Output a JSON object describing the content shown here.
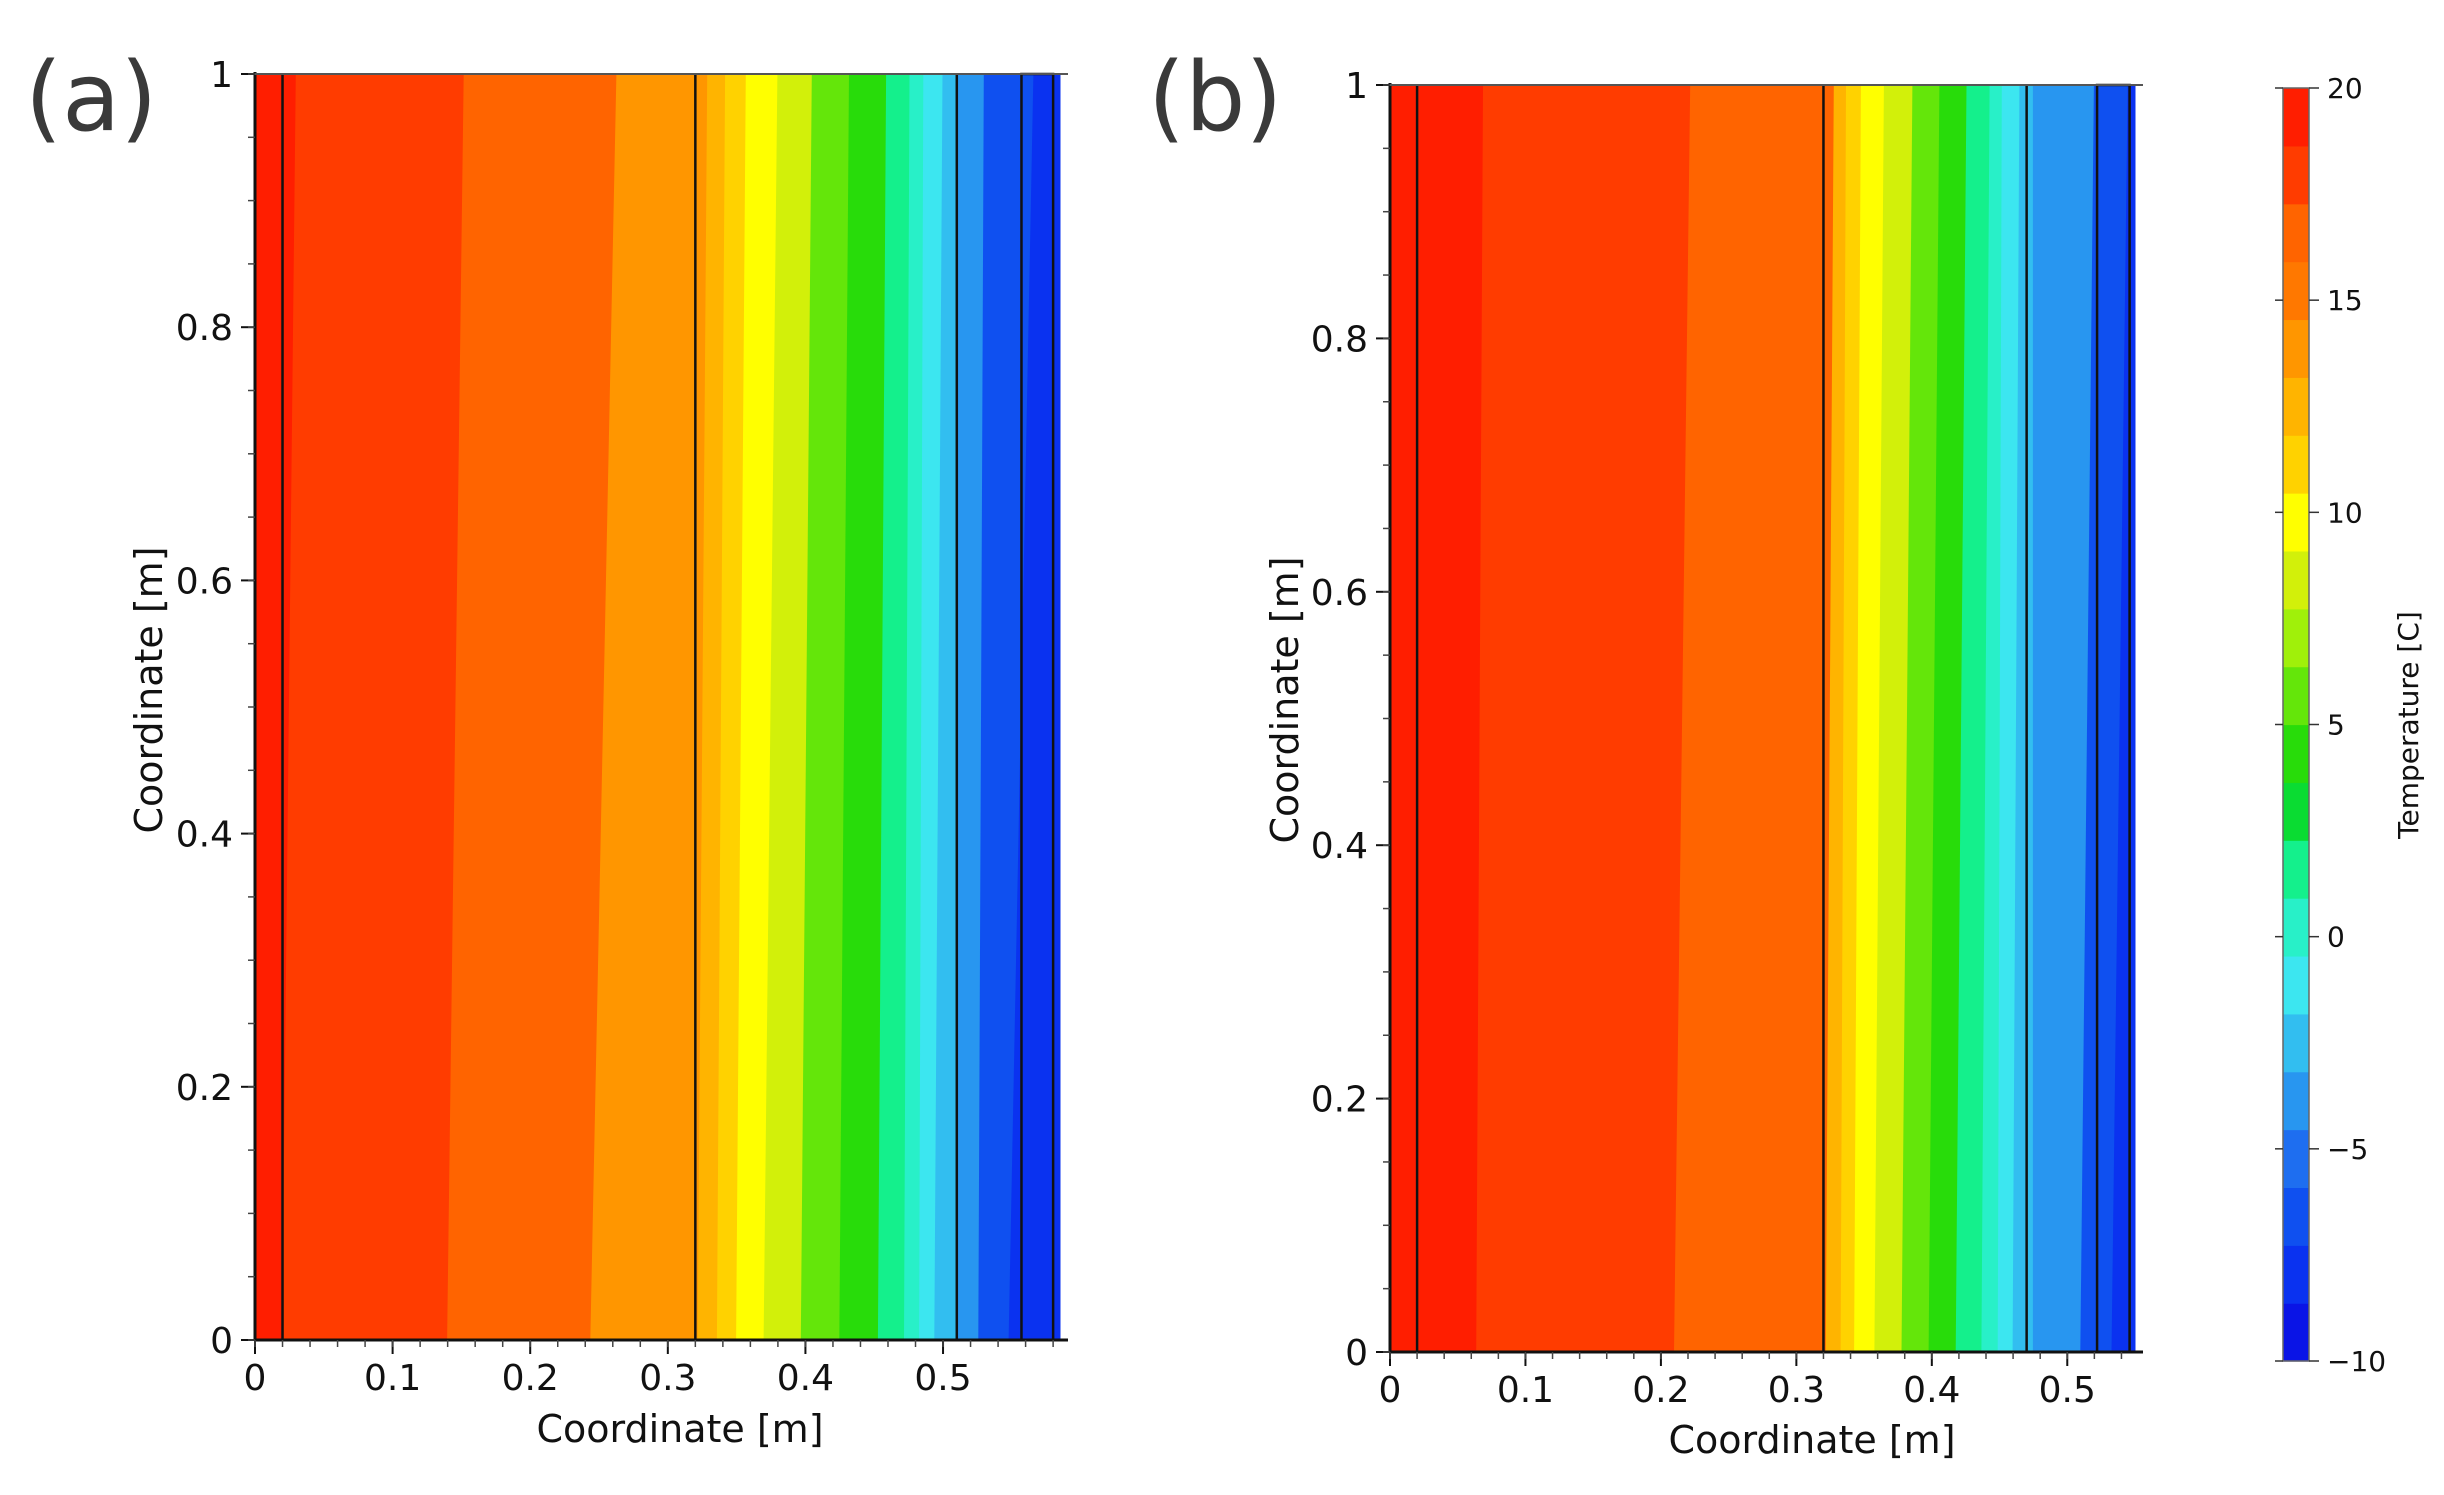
{
  "colorbar": {
    "title": "Temperature [C]",
    "min": -10,
    "max": 20,
    "ticks": [
      -10,
      -5,
      0,
      5,
      10,
      15,
      20
    ],
    "levels": [
      "#0a14e6",
      "#0a32f0",
      "#0f50f0",
      "#1e6ef0",
      "#2896f0",
      "#32bef0",
      "#3ce6f0",
      "#28f0c8",
      "#14f08c",
      "#0adc32",
      "#28dc0a",
      "#64e60a",
      "#a0f00a",
      "#d2f00a",
      "#ffff00",
      "#ffd200",
      "#ffb400",
      "#ff9600",
      "#ff7800",
      "#ff6400",
      "#ff3c00",
      "#ff1e00"
    ]
  },
  "chart_data": [
    {
      "type": "heatmap",
      "panel_label": "(a)",
      "xlabel": "Coordinate [m]",
      "ylabel": "Coordinate [m]",
      "xlim": [
        0,
        0.585
      ],
      "ylim": [
        0,
        1
      ],
      "xticks": [
        0,
        0.1,
        0.2,
        0.3,
        0.4,
        0.5
      ],
      "yticks": [
        0,
        0.2,
        0.4,
        0.6,
        0.8,
        1
      ],
      "xtick_labels": [
        "0",
        "0.1",
        "0.2",
        "0.3",
        "0.4",
        "0.5"
      ],
      "ytick_labels": [
        "0",
        "0.2",
        "0.4",
        "0.6",
        "0.8",
        "1"
      ],
      "layer_boundaries_x": [
        0.02,
        0.32,
        0.51
      ],
      "inner_box_x": [
        0.557,
        0.58
      ],
      "temperature_bands": [
        {
          "x0_bottom": 0,
          "x0_top": 0,
          "temp": 19
        },
        {
          "x0_bottom": 0.02,
          "x0_top": 0.03,
          "temp": 17.5
        },
        {
          "x0_bottom": 0.14,
          "x0_top": 0.152,
          "temp": 16
        },
        {
          "x0_bottom": 0.244,
          "x0_top": 0.263,
          "temp": 14.5
        },
        {
          "x0_bottom": 0.322,
          "x0_top": 0.329,
          "temp": 13
        },
        {
          "x0_bottom": 0.336,
          "x0_top": 0.342,
          "temp": 11.5
        },
        {
          "x0_bottom": 0.35,
          "x0_top": 0.357,
          "temp": 10
        },
        {
          "x0_bottom": 0.37,
          "x0_top": 0.38,
          "temp": 8
        },
        {
          "x0_bottom": 0.397,
          "x0_top": 0.405,
          "temp": 6
        },
        {
          "x0_bottom": 0.425,
          "x0_top": 0.432,
          "temp": 4
        },
        {
          "x0_bottom": 0.453,
          "x0_top": 0.459,
          "temp": 2
        },
        {
          "x0_bottom": 0.472,
          "x0_top": 0.476,
          "temp": 0
        },
        {
          "x0_bottom": 0.483,
          "x0_top": 0.486,
          "temp": -1.5
        },
        {
          "x0_bottom": 0.494,
          "x0_top": 0.5,
          "temp": -3
        },
        {
          "x0_bottom": 0.51,
          "x0_top": 0.51,
          "temp": -4.5
        },
        {
          "x0_bottom": 0.526,
          "x0_top": 0.53,
          "temp": -6
        },
        {
          "x0_bottom": 0.548,
          "x0_top": 0.566,
          "temp": -7.5
        }
      ]
    },
    {
      "type": "heatmap",
      "panel_label": "(b)",
      "xlabel": "Coordinate [m]",
      "ylabel": "Coordinate [m]",
      "xlim": [
        0,
        0.55
      ],
      "ylim": [
        0,
        1
      ],
      "xticks": [
        0,
        0.1,
        0.2,
        0.3,
        0.4,
        0.5
      ],
      "yticks": [
        0,
        0.2,
        0.4,
        0.6,
        0.8,
        1
      ],
      "xtick_labels": [
        "0",
        "0.1",
        "0.2",
        "0.3",
        "0.4",
        "0.5"
      ],
      "ytick_labels": [
        "0",
        "0.2",
        "0.4",
        "0.6",
        "0.8",
        "1"
      ],
      "layer_boundaries_x": [
        0.02,
        0.32,
        0.47
      ],
      "inner_box_x": [
        0.522,
        0.546
      ],
      "temperature_bands": [
        {
          "x0_bottom": 0,
          "x0_top": 0,
          "temp": 19
        },
        {
          "x0_bottom": 0.064,
          "x0_top": 0.069,
          "temp": 17.5
        },
        {
          "x0_bottom": 0.21,
          "x0_top": 0.222,
          "temp": 16
        },
        {
          "x0_bottom": 0.322,
          "x0_top": 0.328,
          "temp": 13
        },
        {
          "x0_bottom": 0.333,
          "x0_top": 0.337,
          "temp": 11.5
        },
        {
          "x0_bottom": 0.343,
          "x0_top": 0.348,
          "temp": 10
        },
        {
          "x0_bottom": 0.358,
          "x0_top": 0.365,
          "temp": 8
        },
        {
          "x0_bottom": 0.378,
          "x0_top": 0.386,
          "temp": 6
        },
        {
          "x0_bottom": 0.398,
          "x0_top": 0.406,
          "temp": 4
        },
        {
          "x0_bottom": 0.418,
          "x0_top": 0.426,
          "temp": 2
        },
        {
          "x0_bottom": 0.437,
          "x0_top": 0.443,
          "temp": 0
        },
        {
          "x0_bottom": 0.449,
          "x0_top": 0.452,
          "temp": -1.5
        },
        {
          "x0_bottom": 0.46,
          "x0_top": 0.465,
          "temp": -3
        },
        {
          "x0_bottom": 0.475,
          "x0_top": 0.475,
          "temp": -4.5
        },
        {
          "x0_bottom": 0.51,
          "x0_top": 0.52,
          "temp": -6
        },
        {
          "x0_bottom": 0.533,
          "x0_top": 0.545,
          "temp": -7.5
        }
      ]
    }
  ]
}
